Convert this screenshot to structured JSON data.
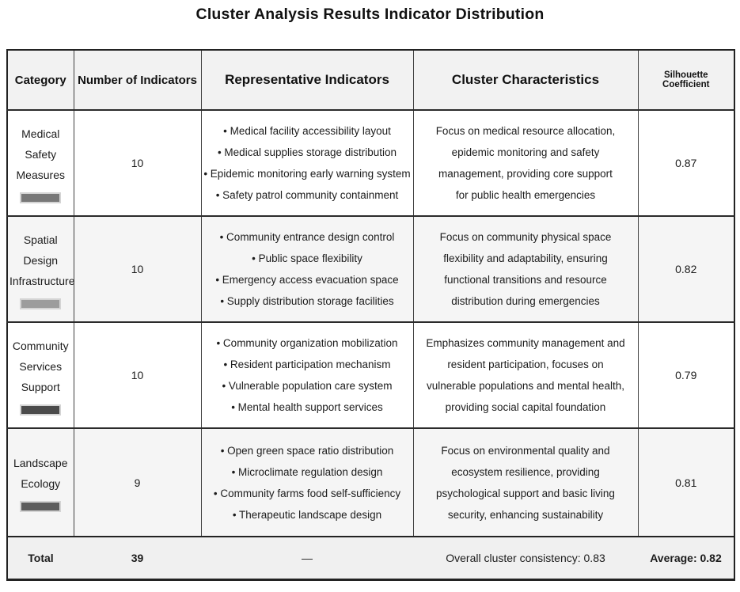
{
  "title": "Cluster Analysis Results Indicator Distribution",
  "accent_colors": {
    "header_bg": "#f2f2f2",
    "alt_row_bg": "#f5f5f5",
    "total_row_bg": "#f0f0f0",
    "border": "#222222"
  },
  "table": {
    "headers": {
      "category": "Category",
      "count": "Number of Indicators",
      "representative": "Representative Indicators",
      "characteristics": "Cluster Characteristics",
      "silhouette": "Silhouette Coefficient"
    },
    "rows": [
      {
        "category_lines": [
          "Medical",
          "Safety",
          "Measures"
        ],
        "bar_color": "#787878",
        "count": "10",
        "indicators": [
          "• Medical facility accessibility layout",
          "• Medical supplies storage distribution",
          "• Epidemic monitoring early warning system",
          "• Safety patrol community containment"
        ],
        "characteristics_lines": [
          "Focus on medical resource allocation,",
          "epidemic monitoring and safety",
          "management, providing core support",
          "for public health emergencies"
        ],
        "silhouette": "0.87"
      },
      {
        "category_lines": [
          "Spatial Design",
          "Infrastructure"
        ],
        "bar_color": "#9c9c9c",
        "count": "10",
        "indicators": [
          "• Community entrance design control",
          "• Public space flexibility",
          "• Emergency access evacuation space",
          "• Supply distribution storage facilities"
        ],
        "characteristics_lines": [
          "Focus on community physical space",
          "flexibility and adaptability, ensuring",
          "functional transitions and resource",
          "distribution during emergencies"
        ],
        "silhouette": "0.82"
      },
      {
        "category_lines": [
          "Community",
          "Services",
          "Support"
        ],
        "bar_color": "#4b4b4b",
        "count": "10",
        "indicators": [
          "• Community organization mobilization",
          "• Resident participation mechanism",
          "• Vulnerable population care system",
          "• Mental health support services"
        ],
        "characteristics_lines": [
          "Emphasizes community management and",
          "resident participation, focuses on",
          "vulnerable populations and mental health,",
          "providing social capital foundation"
        ],
        "silhouette": "0.79"
      },
      {
        "category_lines": [
          "Landscape",
          "Ecology"
        ],
        "bar_color": "#5d5d5d",
        "count": "9",
        "indicators": [
          "• Open green space ratio distribution",
          "• Microclimate regulation design",
          "• Community farms food self-sufficiency",
          "• Therapeutic landscape design"
        ],
        "characteristics_lines": [
          "Focus on environmental quality and",
          "ecosystem resilience, providing",
          "psychological support and basic living",
          "security, enhancing sustainability"
        ],
        "silhouette": "0.81"
      }
    ],
    "total": {
      "label": "Total",
      "count": "39",
      "dash": "—",
      "consistency": "Overall cluster consistency: 0.83",
      "average": "Average: 0.82"
    }
  }
}
